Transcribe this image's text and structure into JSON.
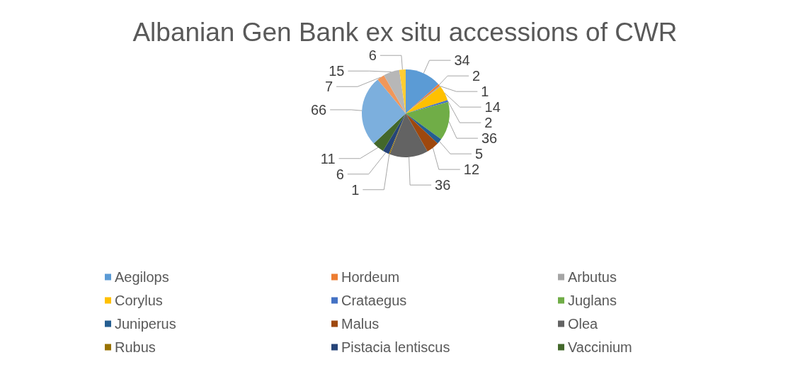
{
  "chart_data": {
    "type": "pie",
    "title": "Albanian Gen Bank ex situ accessions of CWR",
    "categories": [
      "Aegilops",
      "Hordeum",
      "Arbutus",
      "Corylus",
      "Crataegus",
      "Juglans",
      "Juniperus",
      "Malus",
      "Olea",
      "Rubus",
      "Pistacia lentiscus",
      "Vaccinium",
      null,
      null,
      null,
      null
    ],
    "values": [
      34,
      2,
      1,
      14,
      2,
      36,
      5,
      12,
      36,
      1,
      6,
      11,
      66,
      7,
      15,
      6
    ],
    "colors": [
      "#5b9bd5",
      "#ed7d31",
      "#a5a5a5",
      "#ffc000",
      "#4472c4",
      "#70ad47",
      "#255e91",
      "#9e480e",
      "#636363",
      "#997300",
      "#264478",
      "#43682b",
      "#7cafdd",
      "#f1975a",
      "#b7b7b7",
      "#ffcd33"
    ],
    "data_labels": true,
    "legend": "bottom"
  }
}
